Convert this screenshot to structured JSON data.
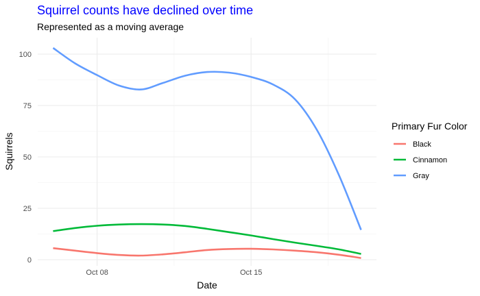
{
  "chart_data": {
    "type": "line",
    "title": "Squirrel counts have declined over time",
    "subtitle": "Represented as a moving average",
    "title_color": "#0000FF",
    "xlabel": "Date",
    "ylabel": "Squirrels",
    "x_range": [
      "2018-10-06",
      "2018-10-20"
    ],
    "ylim": [
      -3,
      108
    ],
    "x_ticks": [
      {
        "date": "2018-10-08",
        "label": "Oct 08"
      },
      {
        "date": "2018-10-15",
        "label": "Oct 15"
      }
    ],
    "y_ticks": [
      0,
      25,
      50,
      75,
      100
    ],
    "grid": true,
    "legend": {
      "title": "Primary Fur Color",
      "position": "right"
    },
    "series": [
      {
        "name": "Black",
        "color": "#F8766D",
        "points": [
          [
            "2018-10-06",
            5.6
          ],
          [
            "2018-10-07",
            4.4
          ],
          [
            "2018-10-08",
            3.2
          ],
          [
            "2018-10-09",
            2.3
          ],
          [
            "2018-10-10",
            2.0
          ],
          [
            "2018-10-11",
            2.6
          ],
          [
            "2018-10-12",
            3.6
          ],
          [
            "2018-10-13",
            4.7
          ],
          [
            "2018-10-14",
            5.2
          ],
          [
            "2018-10-15",
            5.3
          ],
          [
            "2018-10-16",
            5.0
          ],
          [
            "2018-10-17",
            4.4
          ],
          [
            "2018-10-18",
            3.6
          ],
          [
            "2018-10-19",
            2.4
          ],
          [
            "2018-10-20",
            0.8
          ]
        ]
      },
      {
        "name": "Cinnamon",
        "color": "#00BA38",
        "points": [
          [
            "2018-10-06",
            13.9
          ],
          [
            "2018-10-07",
            15.4
          ],
          [
            "2018-10-08",
            16.5
          ],
          [
            "2018-10-09",
            17.1
          ],
          [
            "2018-10-10",
            17.3
          ],
          [
            "2018-10-11",
            17.1
          ],
          [
            "2018-10-12",
            16.4
          ],
          [
            "2018-10-13",
            15.0
          ],
          [
            "2018-10-14",
            13.4
          ],
          [
            "2018-10-15",
            11.8
          ],
          [
            "2018-10-16",
            10.0
          ],
          [
            "2018-10-17",
            8.3
          ],
          [
            "2018-10-18",
            6.7
          ],
          [
            "2018-10-19",
            5.0
          ],
          [
            "2018-10-20",
            2.8
          ]
        ]
      },
      {
        "name": "Gray",
        "color": "#619CFF",
        "points": [
          [
            "2018-10-06",
            103.0
          ],
          [
            "2018-10-07",
            95.5
          ],
          [
            "2018-10-08",
            89.8
          ],
          [
            "2018-10-09",
            84.7
          ],
          [
            "2018-10-10",
            82.8
          ],
          [
            "2018-10-11",
            86.0
          ],
          [
            "2018-10-12",
            89.5
          ],
          [
            "2018-10-13",
            91.3
          ],
          [
            "2018-10-14",
            91.0
          ],
          [
            "2018-10-15",
            88.9
          ],
          [
            "2018-10-16",
            85.2
          ],
          [
            "2018-10-17",
            78.0
          ],
          [
            "2018-10-18",
            63.0
          ],
          [
            "2018-10-19",
            41.0
          ],
          [
            "2018-10-20",
            14.5
          ]
        ]
      }
    ]
  }
}
